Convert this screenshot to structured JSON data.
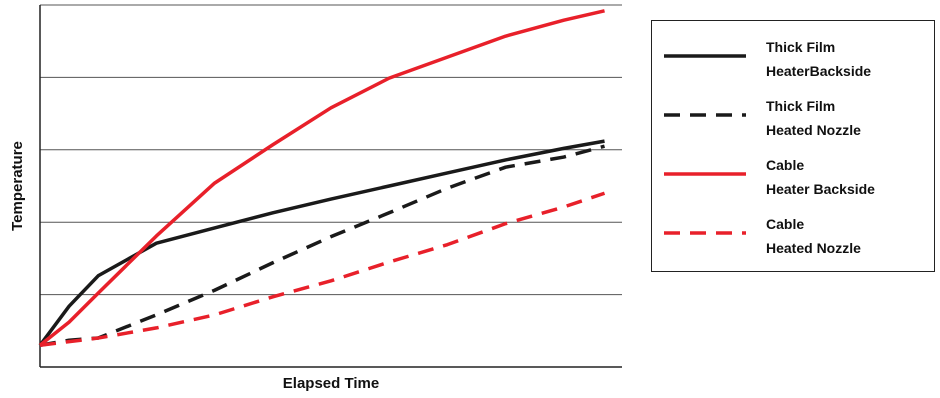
{
  "chart_data": {
    "type": "line",
    "xlabel": "Elapsed Time",
    "ylabel": "Temperature",
    "x": [
      0,
      0.5,
      1,
      2,
      3,
      4,
      5,
      6,
      7,
      8,
      9,
      9.7
    ],
    "xlim": [
      0,
      10
    ],
    "ylim": [
      0,
      5
    ],
    "yticks": [
      1,
      2,
      3,
      4,
      5
    ],
    "grid": true,
    "series": [
      {
        "name": "Thick Film\nHeaterBackside",
        "color": "#1a1a1a",
        "dash": false,
        "values": [
          0.3,
          0.84,
          1.26,
          1.71,
          1.92,
          2.13,
          2.32,
          2.5,
          2.68,
          2.86,
          3.02,
          3.12
        ]
      },
      {
        "name": "Thick Film\nHeated Nozzle",
        "color": "#1a1a1a",
        "dash": true,
        "values": [
          0.3,
          0.37,
          0.4,
          0.72,
          1.06,
          1.44,
          1.8,
          2.13,
          2.47,
          2.76,
          2.9,
          3.05
        ]
      },
      {
        "name": "Cable\nHeater Backside",
        "color": "#e8202a",
        "dash": false,
        "values": [
          0.3,
          0.62,
          1.02,
          1.81,
          2.54,
          3.07,
          3.58,
          3.99,
          4.28,
          4.57,
          4.79,
          4.92
        ]
      },
      {
        "name": "Cable\nHeated Nozzle",
        "color": "#e8202a",
        "dash": true,
        "values": [
          0.3,
          0.35,
          0.4,
          0.54,
          0.72,
          0.97,
          1.19,
          1.45,
          1.69,
          1.98,
          2.21,
          2.4
        ]
      }
    ]
  }
}
